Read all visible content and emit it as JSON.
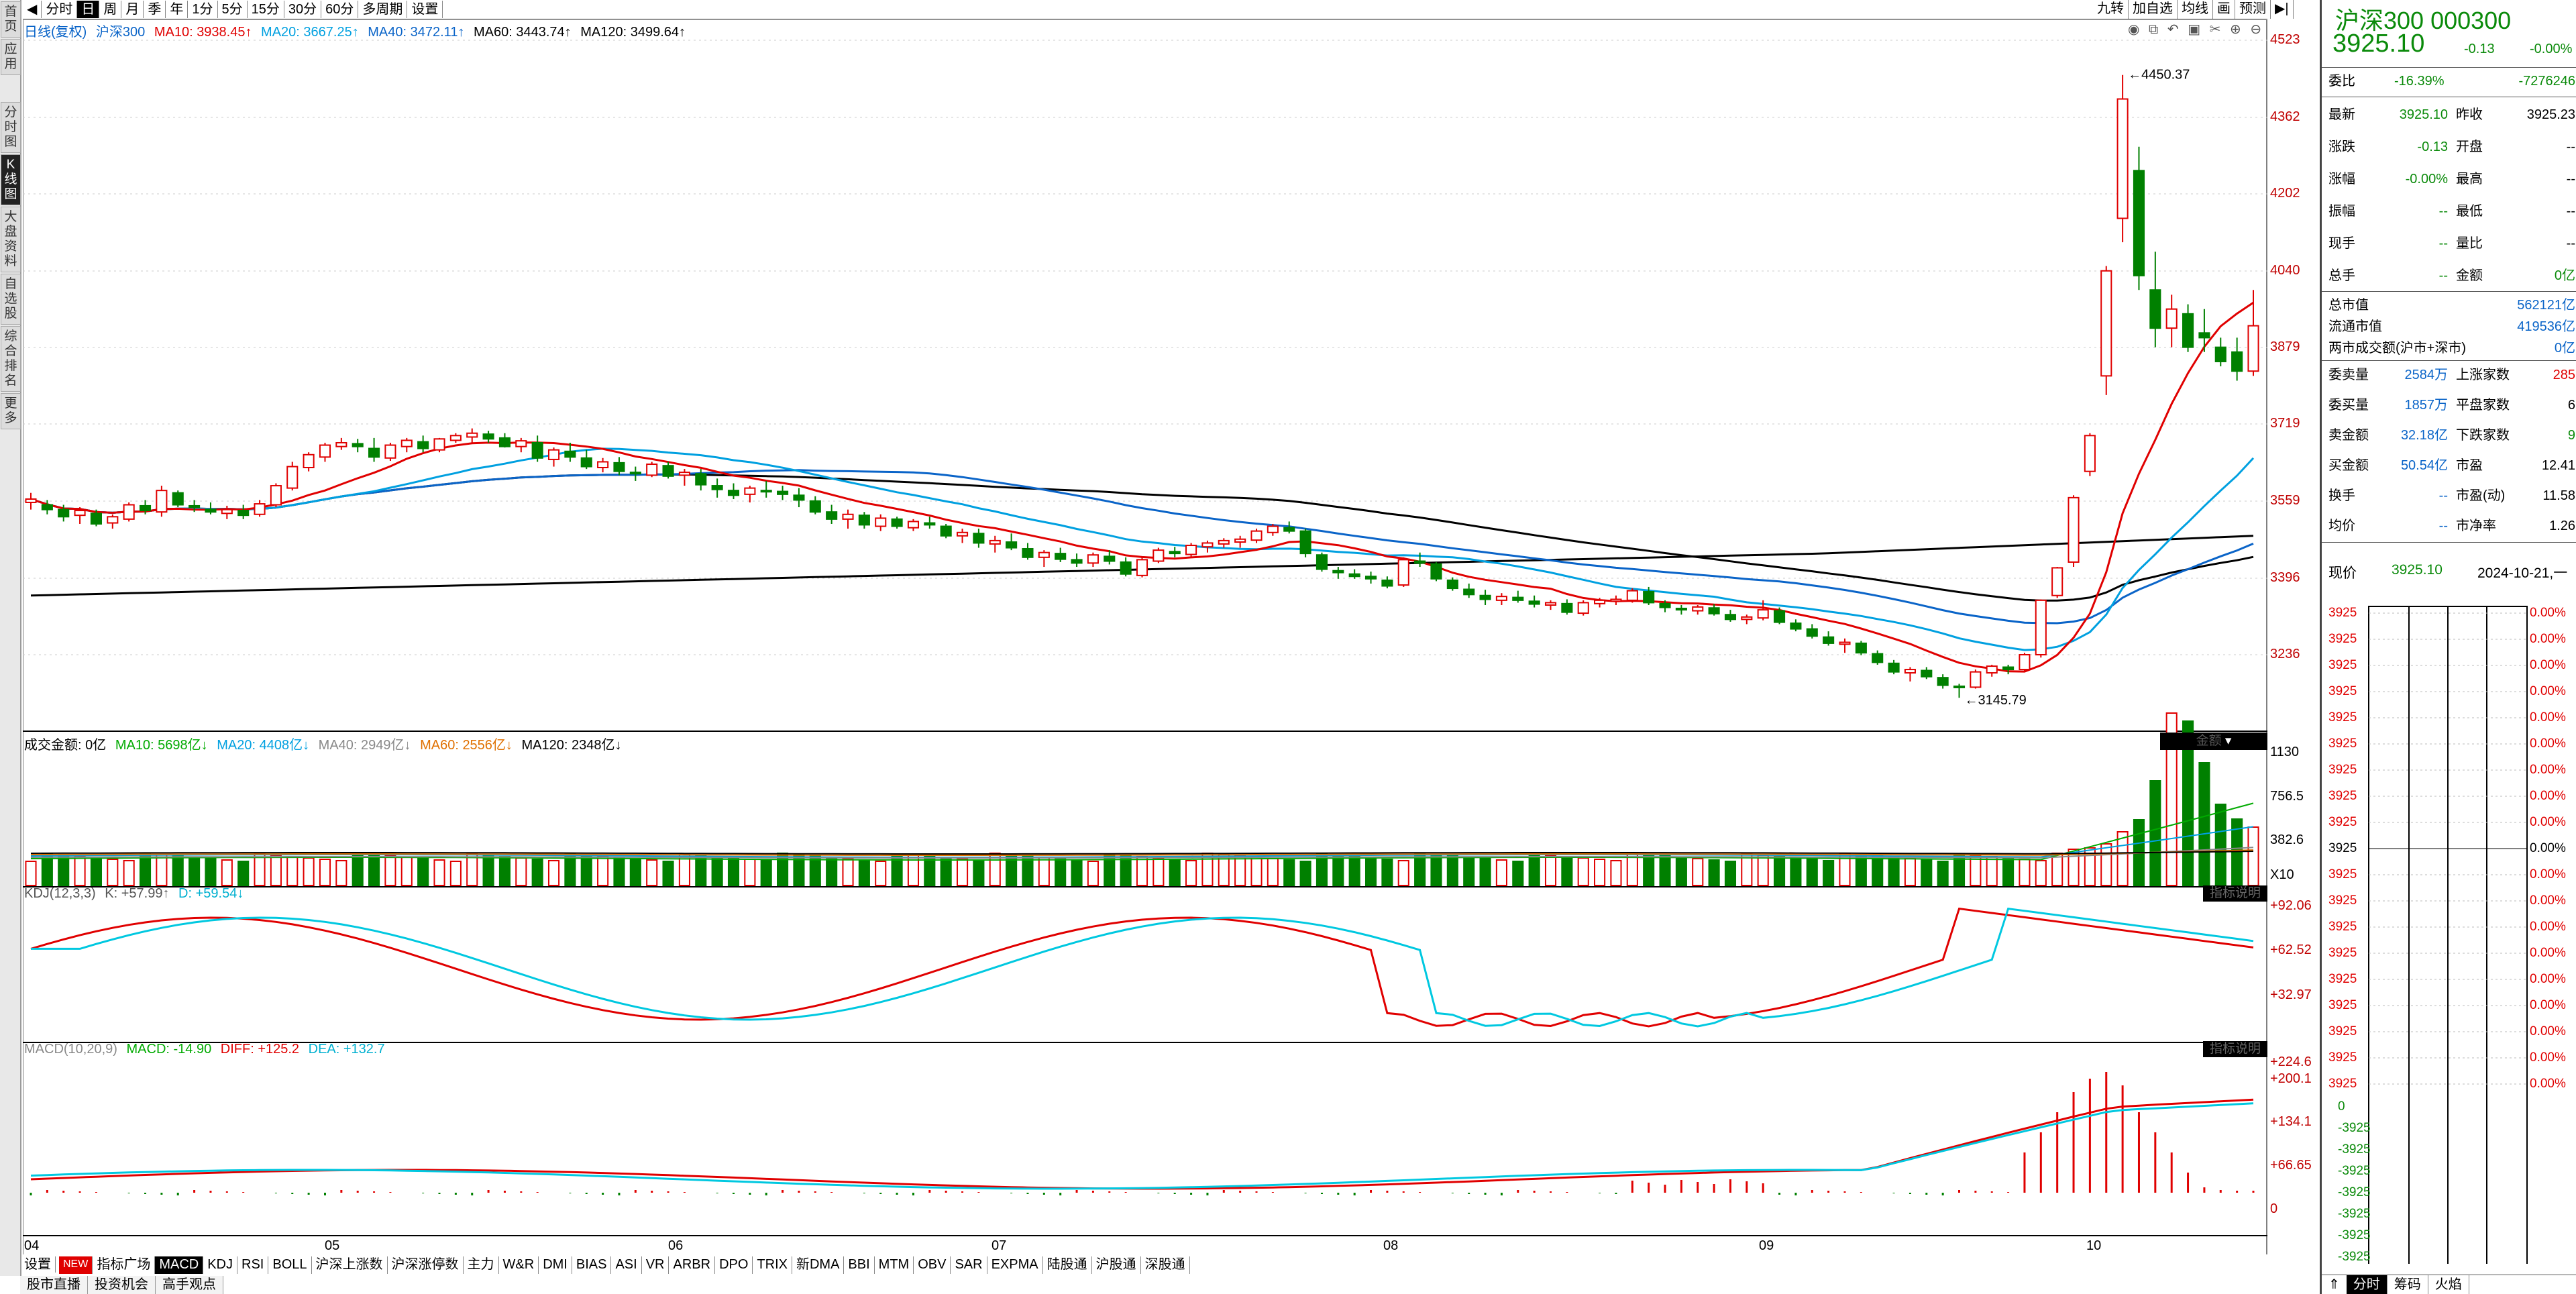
{
  "left_tabs": [
    {
      "label": "首页",
      "active": false
    },
    {
      "label": "应用",
      "active": false
    },
    {
      "label": "分时图",
      "active": false
    },
    {
      "label": "K线图",
      "active": true
    },
    {
      "label": "大盘资料",
      "active": false
    },
    {
      "label": "自选股",
      "active": false
    },
    {
      "label": "综合排名",
      "active": false
    },
    {
      "label": "更多",
      "active": false
    }
  ],
  "period_tabs": [
    "分时",
    "日",
    "周",
    "月",
    "季",
    "年",
    "1分",
    "5分",
    "15分",
    "30分",
    "60分",
    "多周期",
    "设置"
  ],
  "active_period": "日",
  "top_right_tabs": [
    "九转",
    "加自选",
    "均线",
    "画",
    "预测"
  ],
  "price_legend": {
    "title": "日线(复权)",
    "name": "沪深300",
    "ma10": "MA10: 3938.45↑",
    "ma20": "MA20: 3667.25↑",
    "ma40": "MA40: 3472.11↑",
    "ma60": "MA60: 3443.74↑",
    "ma120": "MA120: 3499.64↑"
  },
  "price_axis": [
    "4523",
    "4362",
    "4202",
    "4040",
    "3879",
    "3719",
    "3559",
    "3396",
    "3236"
  ],
  "price_annotations": {
    "high": "4450.37",
    "low": "3145.79"
  },
  "volume_legend": {
    "title": "成交金额: 0亿",
    "ma10": "MA10: 5698亿↓",
    "ma20": "MA20: 4408亿↓",
    "ma40": "MA40: 2949亿↓",
    "ma60": "MA60: 2556亿↓",
    "ma120": "MA120: 2348亿↓"
  },
  "volume_axis": [
    "1130",
    "756.5",
    "382.6",
    "X10"
  ],
  "volume_badge": "金额",
  "kdj_legend": {
    "title": "KDJ(12,3,3)",
    "k": "K: +57.99↑",
    "d": "D: +59.54↓"
  },
  "kdj_axis": [
    "+92.06",
    "+62.52",
    "+32.97"
  ],
  "kdj_badge": "指标说明",
  "macd_legend": {
    "title": "MACD(10,20,9)",
    "macd": "MACD: -14.90",
    "diff": "DIFF: +125.2",
    "dea": "DEA: +132.7"
  },
  "macd_axis": [
    "+224.6",
    "+200.1",
    "+134.1",
    "+66.65",
    "0"
  ],
  "macd_badge": "指标说明",
  "x_labels": [
    "04",
    "05",
    "06",
    "07",
    "08",
    "09",
    "10"
  ],
  "indicator_tabs": [
    "NEW",
    "指标广场",
    "MACD",
    "KDJ",
    "RSI",
    "BOLL",
    "沪深上涨数",
    "沪深涨停数",
    "主力",
    "W&R",
    "DMI",
    "BIAS",
    "ASI",
    "VR",
    "ARBR",
    "DPO",
    "TRIX",
    "新DMA",
    "BBI",
    "MTM",
    "OBV",
    "SAR",
    "EXPMA",
    "陆股通",
    "沪股通",
    "深股通"
  ],
  "active_indicator": "MACD",
  "settings_label": "设置",
  "bottom_strip": [
    "股市直播",
    "投资机会",
    "高手观点"
  ],
  "quote": {
    "title": "沪深300 000300",
    "price": "3925.10",
    "change": "-0.13",
    "change_pct": "-0.00%",
    "weibi_label": "委比",
    "weibi_pct": "-16.39%",
    "weibi_val": "-7276246",
    "rows": [
      {
        "k": "最新",
        "v": "3925.10",
        "k2": "昨收",
        "v2": "3925.23"
      },
      {
        "k": "涨跌",
        "v": "-0.13",
        "k2": "开盘",
        "v2": "--"
      },
      {
        "k": "涨幅",
        "v": "-0.00%",
        "k2": "最高",
        "v2": "--"
      },
      {
        "k": "振幅",
        "v": "--",
        "k2": "最低",
        "v2": "--"
      },
      {
        "k": "现手",
        "v": "--",
        "k2": "量比",
        "v2": "--"
      },
      {
        "k": "总手",
        "v": "--",
        "k2": "金额",
        "v2": "0亿"
      }
    ],
    "cap_rows": [
      {
        "k": "总市值",
        "v": "562121亿"
      },
      {
        "k": "流通市值",
        "v": "419536亿"
      },
      {
        "k": "两市成交额(沪市+深市)",
        "v": "0亿"
      }
    ],
    "stat_rows": [
      {
        "k": "委卖量",
        "v": "2584万",
        "k2": "上涨家数",
        "v2": "285"
      },
      {
        "k": "委买量",
        "v": "1857万",
        "k2": "平盘家数",
        "v2": "6"
      },
      {
        "k": "卖金额",
        "v": "32.18亿",
        "k2": "下跌家数",
        "v2": "9"
      },
      {
        "k": "买金额",
        "v": "50.54亿",
        "k2": "市盈",
        "v2": "12.41"
      },
      {
        "k": "换手",
        "v": "--",
        "k2": "市盈(动)",
        "v2": "11.58"
      },
      {
        "k": "均价",
        "v": "--",
        "k2": "市净率",
        "v2": "1.26"
      }
    ],
    "now_label": "现价",
    "now_price": "3925.10",
    "now_date": "2024-10-21,一",
    "mini_left": [
      "3925",
      "3925",
      "3925",
      "3925",
      "3925",
      "3925",
      "3925",
      "3925",
      "3925",
      "3925",
      "3925",
      "3925",
      "3925",
      "3925",
      "3925",
      "3925",
      "3925",
      "3925",
      "3925"
    ],
    "mini_right": [
      "0.00%",
      "0.00%",
      "0.00%",
      "0.00%",
      "0.00%",
      "0.00%",
      "0.00%",
      "0.00%",
      "0.00%",
      "0.00%",
      "0.00%",
      "0.00%",
      "0.00%",
      "0.00%",
      "0.00%",
      "0.00%",
      "0.00%",
      "0.00%",
      "0.00%"
    ],
    "mini_bottom_left": [
      "0",
      "-3925",
      "-3925",
      "-3925",
      "-3925",
      "-3925",
      "-3925",
      "-3925"
    ],
    "bottom_tabs": [
      "分时",
      "筹码",
      "火焰"
    ]
  },
  "colors": {
    "up": "#e00000",
    "down": "#008000",
    "ma10": "#e00000",
    "ma20": "#00a0e0",
    "ma40": "#0a64c8",
    "ma60": "#000000",
    "ma120": "#000000",
    "kdj_k": "#e00000",
    "kdj_d": "#00c8e0"
  },
  "chart_data": {
    "type": "candlestick",
    "series_note": "沪深300 daily",
    "ylim": [
      3145.79,
      4523
    ],
    "ohlc": [
      [
        3555,
        3575,
        3540,
        3562
      ],
      [
        3550,
        3560,
        3530,
        3540
      ],
      [
        3540,
        3550,
        3515,
        3525
      ],
      [
        3528,
        3545,
        3510,
        3538
      ],
      [
        3532,
        3540,
        3505,
        3510
      ],
      [
        3512,
        3530,
        3500,
        3525
      ],
      [
        3520,
        3555,
        3515,
        3550
      ],
      [
        3548,
        3560,
        3530,
        3538
      ],
      [
        3535,
        3590,
        3525,
        3580
      ],
      [
        3575,
        3580,
        3545,
        3550
      ],
      [
        3548,
        3560,
        3535,
        3545
      ],
      [
        3540,
        3555,
        3530,
        3535
      ],
      [
        3532,
        3548,
        3520,
        3540
      ],
      [
        3538,
        3550,
        3520,
        3528
      ],
      [
        3530,
        3560,
        3525,
        3552
      ],
      [
        3550,
        3595,
        3545,
        3590
      ],
      [
        3585,
        3640,
        3580,
        3630
      ],
      [
        3628,
        3660,
        3620,
        3655
      ],
      [
        3650,
        3680,
        3640,
        3675
      ],
      [
        3672,
        3690,
        3665,
        3680
      ],
      [
        3678,
        3688,
        3660,
        3672
      ],
      [
        3668,
        3690,
        3640,
        3650
      ],
      [
        3648,
        3680,
        3642,
        3675
      ],
      [
        3672,
        3690,
        3660,
        3685
      ],
      [
        3682,
        3695,
        3660,
        3668
      ],
      [
        3665,
        3690,
        3660,
        3688
      ],
      [
        3685,
        3700,
        3680,
        3695
      ],
      [
        3692,
        3710,
        3680,
        3700
      ],
      [
        3698,
        3705,
        3680,
        3688
      ],
      [
        3690,
        3700,
        3670,
        3672
      ],
      [
        3672,
        3690,
        3660,
        3684
      ],
      [
        3680,
        3695,
        3640,
        3648
      ],
      [
        3645,
        3670,
        3630,
        3665
      ],
      [
        3662,
        3680,
        3640,
        3650
      ],
      [
        3648,
        3665,
        3625,
        3630
      ],
      [
        3628,
        3648,
        3618,
        3640
      ],
      [
        3638,
        3650,
        3612,
        3620
      ],
      [
        3618,
        3630,
        3600,
        3615
      ],
      [
        3612,
        3640,
        3608,
        3635
      ],
      [
        3632,
        3640,
        3605,
        3610
      ],
      [
        3612,
        3625,
        3590,
        3618
      ],
      [
        3615,
        3625,
        3580,
        3592
      ],
      [
        3590,
        3605,
        3565,
        3582
      ],
      [
        3580,
        3595,
        3562,
        3570
      ],
      [
        3572,
        3590,
        3555,
        3585
      ],
      [
        3580,
        3600,
        3565,
        3578
      ],
      [
        3578,
        3590,
        3560,
        3572
      ],
      [
        3570,
        3585,
        3545,
        3560
      ],
      [
        3558,
        3568,
        3530,
        3535
      ],
      [
        3535,
        3550,
        3510,
        3520
      ],
      [
        3520,
        3540,
        3500,
        3530
      ],
      [
        3528,
        3535,
        3500,
        3508
      ],
      [
        3505,
        3530,
        3495,
        3522
      ],
      [
        3520,
        3525,
        3500,
        3505
      ],
      [
        3502,
        3520,
        3495,
        3515
      ],
      [
        3512,
        3525,
        3500,
        3508
      ],
      [
        3505,
        3510,
        3480,
        3485
      ],
      [
        3485,
        3500,
        3470,
        3492
      ],
      [
        3490,
        3500,
        3460,
        3470
      ],
      [
        3468,
        3485,
        3450,
        3475
      ],
      [
        3472,
        3490,
        3455,
        3460
      ],
      [
        3458,
        3470,
        3435,
        3440
      ],
      [
        3440,
        3455,
        3420,
        3450
      ],
      [
        3448,
        3460,
        3430,
        3436
      ],
      [
        3435,
        3448,
        3420,
        3428
      ],
      [
        3428,
        3450,
        3420,
        3445
      ],
      [
        3442,
        3455,
        3425,
        3432
      ],
      [
        3430,
        3440,
        3400,
        3405
      ],
      [
        3402,
        3440,
        3398,
        3435
      ],
      [
        3432,
        3460,
        3428,
        3455
      ],
      [
        3452,
        3462,
        3440,
        3448
      ],
      [
        3446,
        3470,
        3440,
        3465
      ],
      [
        3462,
        3475,
        3450,
        3470
      ],
      [
        3468,
        3480,
        3460,
        3475
      ],
      [
        3472,
        3485,
        3460,
        3478
      ],
      [
        3476,
        3500,
        3470,
        3495
      ],
      [
        3492,
        3510,
        3485,
        3505
      ],
      [
        3502,
        3515,
        3490,
        3495
      ],
      [
        3495,
        3500,
        3440,
        3448
      ],
      [
        3445,
        3450,
        3410,
        3415
      ],
      [
        3412,
        3420,
        3395,
        3408
      ],
      [
        3405,
        3415,
        3395,
        3400
      ],
      [
        3400,
        3410,
        3385,
        3395
      ],
      [
        3392,
        3400,
        3375,
        3380
      ],
      [
        3382,
        3440,
        3378,
        3435
      ],
      [
        3432,
        3450,
        3420,
        3428
      ],
      [
        3426,
        3430,
        3390,
        3395
      ],
      [
        3392,
        3398,
        3370,
        3375
      ],
      [
        3373,
        3385,
        3355,
        3362
      ],
      [
        3360,
        3372,
        3340,
        3352
      ],
      [
        3350,
        3365,
        3340,
        3358
      ],
      [
        3356,
        3370,
        3345,
        3350
      ],
      [
        3348,
        3360,
        3335,
        3342
      ],
      [
        3340,
        3350,
        3330,
        3345
      ],
      [
        3343,
        3352,
        3320,
        3325
      ],
      [
        3323,
        3350,
        3318,
        3345
      ],
      [
        3343,
        3355,
        3335,
        3350
      ],
      [
        3348,
        3360,
        3340,
        3352
      ],
      [
        3350,
        3375,
        3345,
        3370
      ],
      [
        3368,
        3378,
        3340,
        3345
      ],
      [
        3343,
        3350,
        3325,
        3335
      ],
      [
        3333,
        3340,
        3320,
        3330
      ],
      [
        3328,
        3340,
        3320,
        3336
      ],
      [
        3334,
        3342,
        3318,
        3322
      ],
      [
        3320,
        3330,
        3305,
        3310
      ],
      [
        3310,
        3320,
        3300,
        3315
      ],
      [
        3313,
        3350,
        3308,
        3330
      ],
      [
        3328,
        3335,
        3300,
        3304
      ],
      [
        3302,
        3310,
        3285,
        3290
      ],
      [
        3290,
        3300,
        3270,
        3275
      ],
      [
        3273,
        3285,
        3255,
        3260
      ],
      [
        3258,
        3270,
        3240,
        3262
      ],
      [
        3260,
        3265,
        3235,
        3240
      ],
      [
        3238,
        3245,
        3215,
        3220
      ],
      [
        3218,
        3225,
        3195,
        3200
      ],
      [
        3198,
        3210,
        3180,
        3205
      ],
      [
        3203,
        3210,
        3185,
        3190
      ],
      [
        3188,
        3195,
        3165,
        3172
      ],
      [
        3170,
        3175,
        3145.79,
        3168
      ],
      [
        3168,
        3205,
        3165,
        3200
      ],
      [
        3198,
        3215,
        3190,
        3212
      ],
      [
        3210,
        3215,
        3195,
        3205
      ],
      [
        3205,
        3240,
        3200,
        3236
      ],
      [
        3236,
        3352,
        3230,
        3350
      ],
      [
        3360,
        3420,
        3355,
        3418
      ],
      [
        3430,
        3570,
        3420,
        3565
      ],
      [
        3620,
        3700,
        3610,
        3695
      ],
      [
        3820,
        4050,
        3780,
        4040
      ],
      [
        4150,
        4450.37,
        4100,
        4400
      ],
      [
        4250,
        4300,
        4000,
        4030
      ],
      [
        4000,
        4080,
        3880,
        3920
      ],
      [
        3920,
        3990,
        3880,
        3960
      ],
      [
        3950,
        3970,
        3870,
        3880
      ],
      [
        3910,
        3960,
        3870,
        3900
      ],
      [
        3880,
        3900,
        3840,
        3850
      ],
      [
        3870,
        3900,
        3810,
        3830
      ],
      [
        3830,
        4000,
        3820,
        3925
      ]
    ],
    "ma10_note": "rising to 3938.45",
    "volume_ylim": [
      0,
      1130
    ],
    "kdj_ylim": [
      32.97,
      92.06
    ],
    "macd_ylim": [
      0,
      224.6
    ]
  }
}
